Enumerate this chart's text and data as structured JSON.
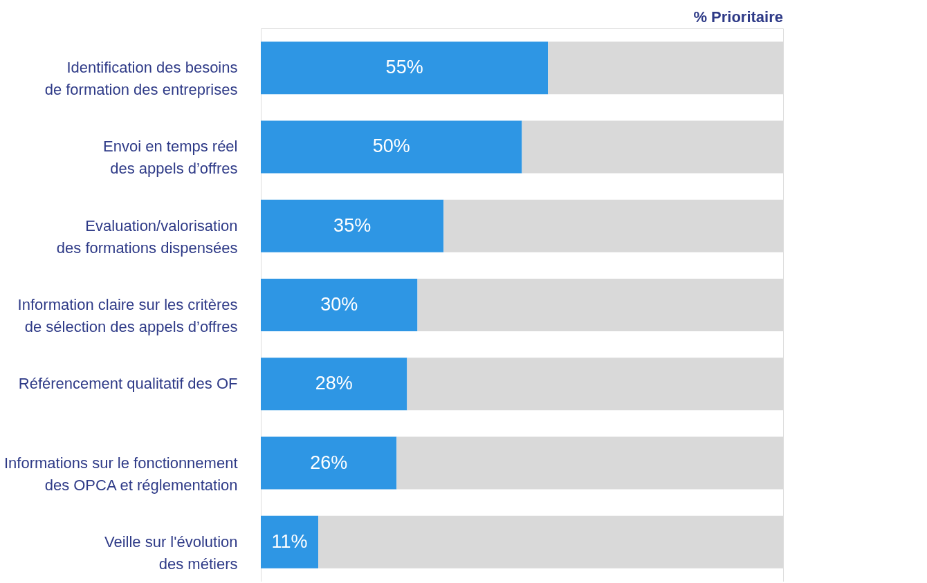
{
  "chart_data": {
    "type": "bar",
    "orientation": "horizontal",
    "stacked": true,
    "title": "% Prioritaire",
    "tick_labels": "y",
    "categories": [
      "Identification des besoins\nde formation des entreprises",
      "Envoi en temps réel\ndes appels d’offres",
      "Evaluation/valorisation\ndes formations dispensées",
      "Information claire sur les critères\nde sélection des appels d’offres",
      "Référencement qualitatif des OF",
      "Informations sur le fonctionnement\ndes OPCA et réglementation",
      "Veille sur l'évolution\ndes métiers"
    ],
    "series": [
      {
        "color": "#2e96e4",
        "values": [
          55,
          50,
          35,
          30,
          28,
          26,
          11
        ],
        "value_labels": [
          "55%",
          "50%",
          "35%",
          "30%",
          "28%",
          "26%",
          "11%"
        ]
      },
      {
        "color": "#d9d9d9",
        "values": [
          45,
          50,
          65,
          70,
          72,
          74,
          89
        ]
      }
    ]
  }
}
